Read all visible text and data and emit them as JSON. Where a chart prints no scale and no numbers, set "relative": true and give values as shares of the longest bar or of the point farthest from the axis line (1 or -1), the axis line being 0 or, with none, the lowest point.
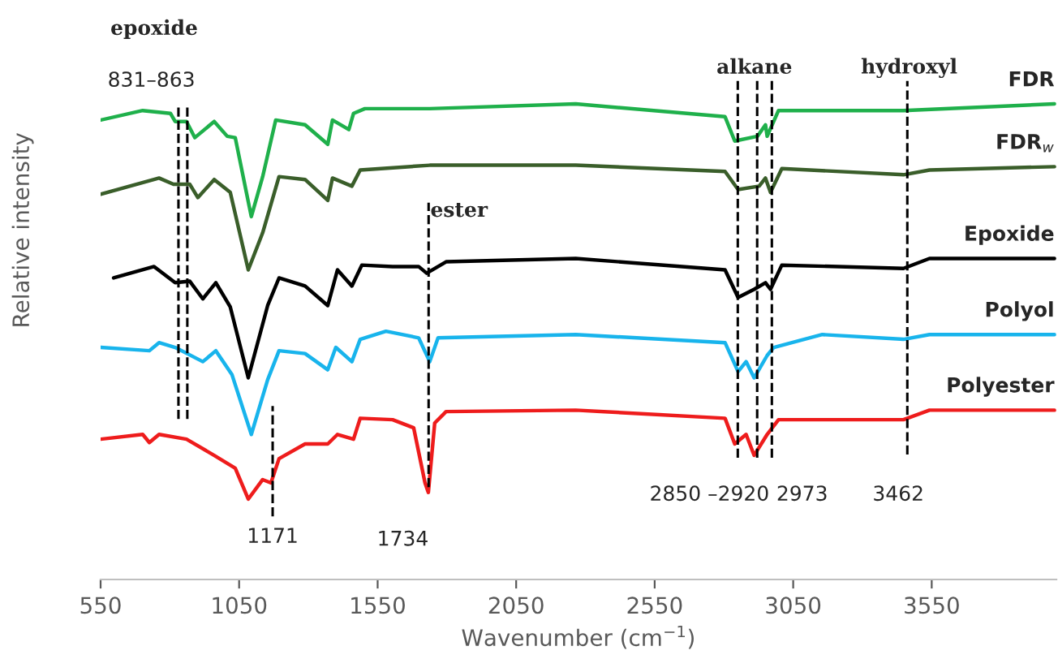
{
  "chart_data": {
    "type": "line",
    "relative": true,
    "xlabel": "Wavenumber (cm$^{−1}$)",
    "ylabel": "Relative intensity",
    "xlim": [
      550,
      4000
    ],
    "xticks": [
      550,
      1050,
      1550,
      2050,
      2550,
      3050,
      3550
    ],
    "grid": false,
    "legend": false,
    "marker": "none",
    "line_style": "solid",
    "series": [
      {
        "name": "FDR",
        "color": "#1fb04b",
        "x": [
          550,
          702,
          802,
          819,
          860,
          890,
          960,
          1007,
          1036,
          1094,
          1135,
          1182,
          1288,
          1370,
          1387,
          1446,
          1463,
          1504,
          1738,
          2265,
          2804,
          2839,
          2921,
          2950,
          2956,
          2997,
          3448,
          3993
        ],
        "values": [
          0.966,
          0.986,
          0.98,
          0.963,
          0.963,
          0.929,
          0.963,
          0.932,
          0.929,
          0.763,
          0.847,
          0.966,
          0.956,
          0.915,
          0.966,
          0.946,
          0.98,
          0.99,
          0.99,
          1.0,
          0.973,
          0.922,
          0.932,
          0.956,
          0.932,
          0.986,
          0.986,
          1.0
        ]
      },
      {
        "name": "FDR$_{w}$",
        "color": "#3a5e2a",
        "x": [
          550,
          761,
          813,
          872,
          901,
          960,
          1018,
          1083,
          1135,
          1194,
          1288,
          1370,
          1387,
          1457,
          1487,
          1738,
          2265,
          2804,
          2851,
          2927,
          2950,
          2968,
          3009,
          3448,
          3542,
          3993
        ],
        "values": [
          0.81,
          0.844,
          0.831,
          0.831,
          0.803,
          0.841,
          0.814,
          0.651,
          0.729,
          0.847,
          0.841,
          0.797,
          0.844,
          0.827,
          0.861,
          0.871,
          0.871,
          0.858,
          0.82,
          0.827,
          0.844,
          0.814,
          0.864,
          0.851,
          0.861,
          0.868
        ]
      },
      {
        "name": "Epoxide",
        "color": "#000000",
        "x": [
          597,
          743,
          819,
          872,
          919,
          966,
          1018,
          1083,
          1153,
          1194,
          1288,
          1370,
          1405,
          1457,
          1493,
          1604,
          1698,
          1727,
          1797,
          2265,
          2804,
          2851,
          2909,
          2950,
          2968,
          3009,
          3448,
          3542,
          3993
        ],
        "values": [
          0.634,
          0.658,
          0.624,
          0.627,
          0.59,
          0.624,
          0.573,
          0.424,
          0.576,
          0.634,
          0.617,
          0.576,
          0.651,
          0.617,
          0.661,
          0.658,
          0.658,
          0.644,
          0.668,
          0.675,
          0.651,
          0.593,
          0.61,
          0.624,
          0.61,
          0.661,
          0.654,
          0.675,
          0.675
        ]
      },
      {
        "name": "Polyol",
        "color": "#18b4ec",
        "x": [
          550,
          726,
          761,
          819,
          919,
          966,
          1024,
          1094,
          1153,
          1194,
          1288,
          1370,
          1399,
          1457,
          1487,
          1580,
          1698,
          1738,
          1768,
          2265,
          2804,
          2851,
          2880,
          2909,
          2956,
          2980,
          3155,
          3448,
          3542,
          3993
        ],
        "values": [
          0.488,
          0.481,
          0.498,
          0.488,
          0.458,
          0.481,
          0.431,
          0.305,
          0.42,
          0.481,
          0.475,
          0.441,
          0.488,
          0.458,
          0.505,
          0.522,
          0.508,
          0.458,
          0.508,
          0.515,
          0.498,
          0.437,
          0.458,
          0.424,
          0.471,
          0.488,
          0.515,
          0.505,
          0.515,
          0.515
        ]
      },
      {
        "name": "Polyester",
        "color": "#ee1c1c",
        "x": [
          550,
          702,
          726,
          761,
          860,
          960,
          1036,
          1083,
          1135,
          1165,
          1194,
          1288,
          1370,
          1405,
          1463,
          1487,
          1604,
          1680,
          1721,
          1733,
          1756,
          1797,
          2265,
          2804,
          2839,
          2880,
          2909,
          2956,
          2997,
          3448,
          3542,
          3993
        ],
        "values": [
          0.295,
          0.305,
          0.288,
          0.305,
          0.295,
          0.261,
          0.234,
          0.169,
          0.21,
          0.203,
          0.254,
          0.285,
          0.285,
          0.305,
          0.295,
          0.339,
          0.336,
          0.319,
          0.203,
          0.183,
          0.329,
          0.353,
          0.356,
          0.339,
          0.285,
          0.305,
          0.261,
          0.305,
          0.336,
          0.336,
          0.356,
          0.356
        ]
      }
    ],
    "ref_lines": [
      {
        "axis": "x",
        "value": 831,
        "line_style": "dashed",
        "color": "#000000",
        "label": "831–863"
      },
      {
        "axis": "x",
        "value": 863,
        "line_style": "dashed",
        "color": "#000000"
      },
      {
        "axis": "x",
        "value": 1171,
        "line_style": "dashed",
        "color": "#000000",
        "label": "1171"
      },
      {
        "axis": "x",
        "value": 1734,
        "line_style": "dashed",
        "color": "#000000",
        "label": "1734"
      },
      {
        "axis": "x",
        "value": 2850,
        "line_style": "dashed",
        "color": "#000000",
        "label": "2850 –2920"
      },
      {
        "axis": "x",
        "value": 2920,
        "line_style": "dashed",
        "color": "#000000"
      },
      {
        "axis": "x",
        "value": 2973,
        "line_style": "dashed",
        "color": "#000000",
        "label": "2973"
      },
      {
        "axis": "x",
        "value": 3462,
        "line_style": "dashed",
        "color": "#000000",
        "label": "3462"
      }
    ],
    "annotations": [
      "epoxide",
      "ester",
      "alkane",
      "hydroxyl"
    ]
  }
}
